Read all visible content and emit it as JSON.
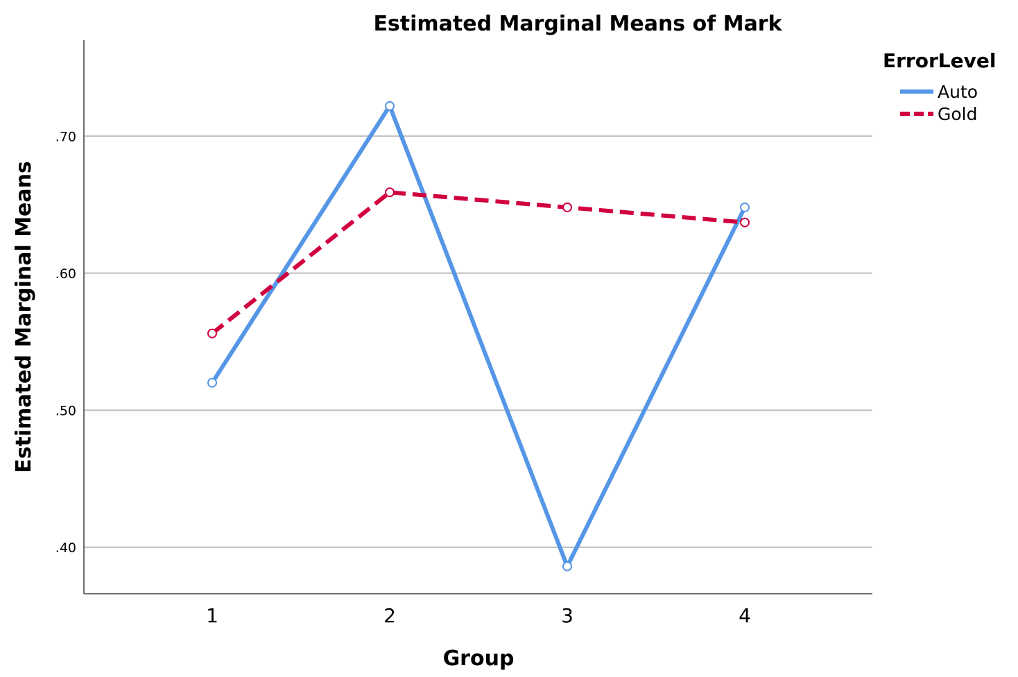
{
  "chart_data": {
    "type": "line",
    "title": "Estimated Marginal Means of Mark",
    "xlabel": "Group",
    "ylabel": "Estimated Marginal Means",
    "categories": [
      "1",
      "2",
      "3",
      "4"
    ],
    "y_ticks": [
      0.4,
      0.5,
      0.6,
      0.7
    ],
    "y_tick_labels": [
      ".40",
      ".50",
      ".60",
      ".70"
    ],
    "ylim": [
      0.366,
      0.77
    ],
    "grid": true,
    "legend": {
      "title": "ErrorLevel",
      "placement": "top-right"
    },
    "series": [
      {
        "name": "Auto",
        "values": [
          0.52,
          0.722,
          0.386,
          0.648
        ],
        "color": "#5596e6",
        "dash": "solid"
      },
      {
        "name": "Gold",
        "values": [
          0.556,
          0.659,
          0.648,
          0.637
        ],
        "color": "#d1003f",
        "dash": "dashed"
      }
    ]
  }
}
